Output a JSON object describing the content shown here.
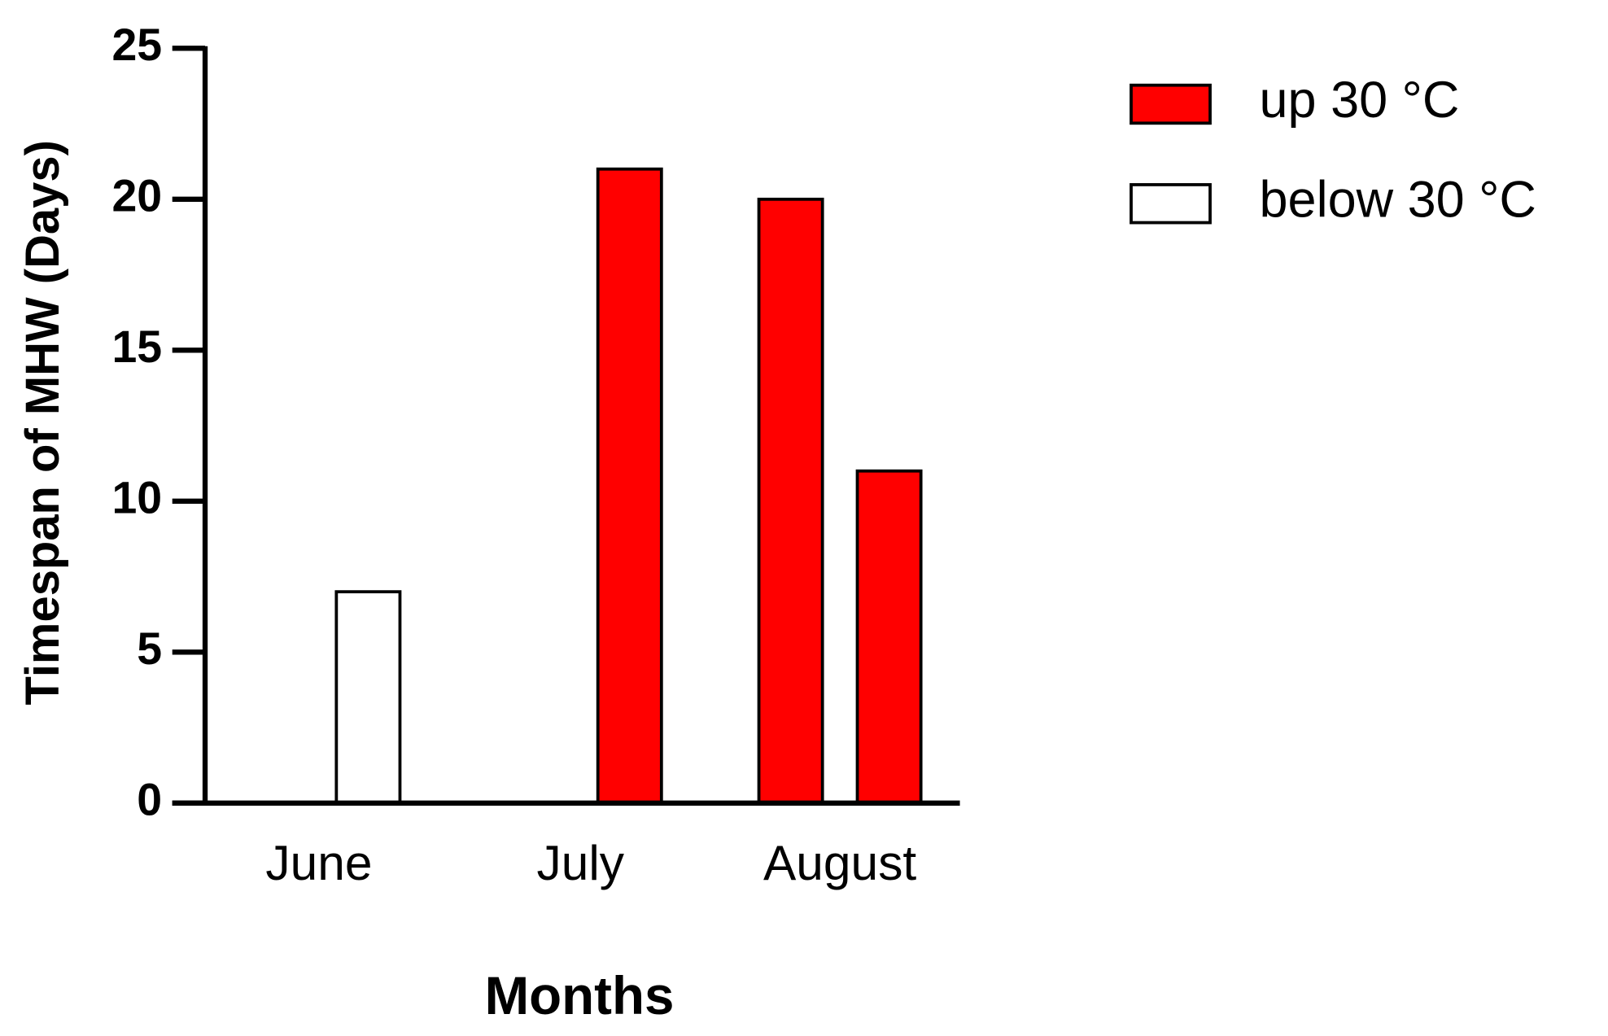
{
  "chart_data": {
    "type": "bar",
    "x_label": "Months",
    "y_label": "Timespan of MHW (Days)",
    "categories": [
      "June",
      "July",
      "August"
    ],
    "legend": [
      {
        "name": "up 30 °C",
        "color": "#ff0000"
      },
      {
        "name": "below 30 °C",
        "color": "#ffffff"
      }
    ],
    "series": [
      {
        "values": [
          null,
          null,
          20
        ],
        "colors": [
          null,
          null,
          "#ff0000"
        ]
      },
      {
        "values": [
          7,
          21,
          11
        ],
        "colors": [
          "#ffffff",
          "#ff0000",
          "#ff0000"
        ]
      }
    ],
    "ylim": [
      0,
      25
    ],
    "yticks": [
      0,
      5,
      10,
      15,
      20,
      25
    ],
    "grid": false
  }
}
